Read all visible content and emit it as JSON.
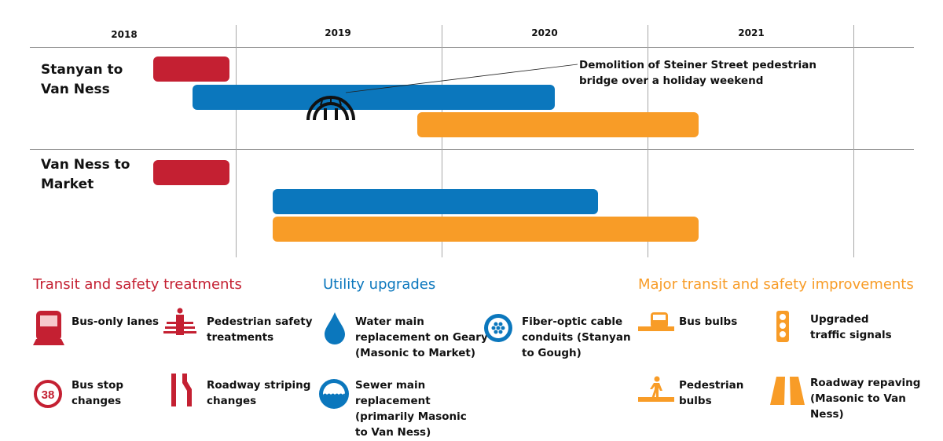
{
  "chart_data": {
    "type": "gantt",
    "x_ticks": [
      "2018",
      "2019",
      "2020",
      "2021"
    ],
    "xlim": [
      2018,
      2022
    ],
    "rows": [
      {
        "label": "Stanyan to Van Ness",
        "bars": [
          {
            "category": "transit",
            "start": 2018.6,
            "end": 2018.97
          },
          {
            "category": "utility",
            "start": 2018.79,
            "end": 2020.55
          },
          {
            "category": "major",
            "start": 2019.88,
            "end": 2021.25
          }
        ]
      },
      {
        "label": "Van Ness to Market",
        "bars": [
          {
            "category": "transit",
            "start": 2018.6,
            "end": 2018.97
          },
          {
            "category": "utility",
            "start": 2019.18,
            "end": 2020.76
          },
          {
            "category": "major",
            "start": 2019.18,
            "end": 2021.25
          }
        ]
      }
    ],
    "annotation": {
      "text": "Demolition of Steiner Street pedestrian bridge over a holiday weekend",
      "icon": "bridge-icon",
      "row": "Stanyan to Van Ness"
    }
  },
  "colors": {
    "transit": "#c42032",
    "utility": "#0b77bd",
    "major": "#f89c27"
  },
  "legend": {
    "transit": {
      "title": "Transit and safety treatments",
      "items": [
        {
          "icon": "bus-icon",
          "label": "Bus-only lanes"
        },
        {
          "icon": "pedestrian-crosswalk-icon",
          "label": "Pedestrian safety treatments"
        },
        {
          "icon": "bus-stop-38-icon",
          "label": "Bus stop changes",
          "badge": "38"
        },
        {
          "icon": "lane-striping-icon",
          "label": "Roadway striping changes"
        }
      ]
    },
    "utility": {
      "title": "Utility upgrades",
      "items": [
        {
          "icon": "water-drop-icon",
          "label": "Water main replacement on Geary (Masonic to Market)"
        },
        {
          "icon": "fiber-optic-icon",
          "label": "Fiber-optic cable conduits (Stanyan to Gough)"
        },
        {
          "icon": "sewer-icon",
          "label": "Sewer main replacement (primarily Masonic to Van Ness)"
        }
      ]
    },
    "major": {
      "title": "Major transit and safety improvements",
      "items": [
        {
          "icon": "bus-bulb-icon",
          "label": "Bus bulbs"
        },
        {
          "icon": "traffic-signal-icon",
          "label": "Upgraded traffic signals"
        },
        {
          "icon": "pedestrian-bulb-icon",
          "label": "Pedestrian bulbs"
        },
        {
          "icon": "road-paving-icon",
          "label": "Roadway repaving (Masonic to Van Ness)"
        }
      ]
    }
  }
}
